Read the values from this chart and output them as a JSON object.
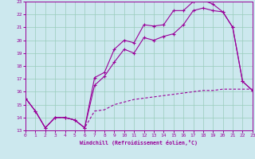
{
  "xlabel": "Windchill (Refroidissement éolien,°C)",
  "bg_color": "#cce8ee",
  "grid_color": "#99ccbb",
  "line_color": "#990099",
  "xlim": [
    0,
    23
  ],
  "ylim": [
    13,
    23
  ],
  "xticks": [
    0,
    1,
    2,
    3,
    4,
    5,
    6,
    7,
    8,
    9,
    10,
    11,
    12,
    13,
    14,
    15,
    16,
    17,
    18,
    19,
    20,
    21,
    22,
    23
  ],
  "yticks": [
    13,
    14,
    15,
    16,
    17,
    18,
    19,
    20,
    21,
    22,
    23
  ],
  "curve1_x": [
    0,
    1,
    2,
    3,
    4,
    5,
    6,
    7,
    8,
    9,
    10,
    11,
    12,
    13,
    14,
    15,
    16,
    17,
    18,
    19,
    20,
    21,
    22,
    23
  ],
  "curve1_y": [
    15.5,
    14.5,
    13.2,
    14.0,
    14.0,
    13.8,
    13.2,
    17.1,
    17.5,
    19.3,
    20.0,
    19.8,
    21.2,
    21.1,
    21.2,
    22.3,
    22.3,
    23.0,
    23.1,
    22.8,
    22.2,
    21.0,
    16.8,
    16.1
  ],
  "curve2_x": [
    0,
    1,
    2,
    3,
    4,
    5,
    6,
    7,
    8,
    9,
    10,
    11,
    12,
    13,
    14,
    15,
    16,
    17,
    18,
    19,
    20,
    21,
    22,
    23
  ],
  "curve2_y": [
    15.5,
    14.5,
    13.2,
    14.0,
    14.0,
    13.8,
    13.2,
    16.5,
    17.2,
    18.3,
    19.3,
    19.0,
    20.2,
    20.0,
    20.3,
    20.5,
    21.2,
    22.3,
    22.5,
    22.3,
    22.2,
    21.0,
    16.8,
    16.1
  ],
  "curve3_x": [
    0,
    1,
    2,
    3,
    4,
    5,
    6,
    7,
    8,
    9,
    10,
    11,
    12,
    13,
    14,
    15,
    16,
    17,
    18,
    19,
    20,
    21,
    22,
    23
  ],
  "curve3_y": [
    15.5,
    14.5,
    13.2,
    14.0,
    14.0,
    13.8,
    13.2,
    14.5,
    14.6,
    15.0,
    15.2,
    15.4,
    15.5,
    15.6,
    15.7,
    15.8,
    15.9,
    16.0,
    16.1,
    16.1,
    16.2,
    16.2,
    16.2,
    16.2
  ]
}
